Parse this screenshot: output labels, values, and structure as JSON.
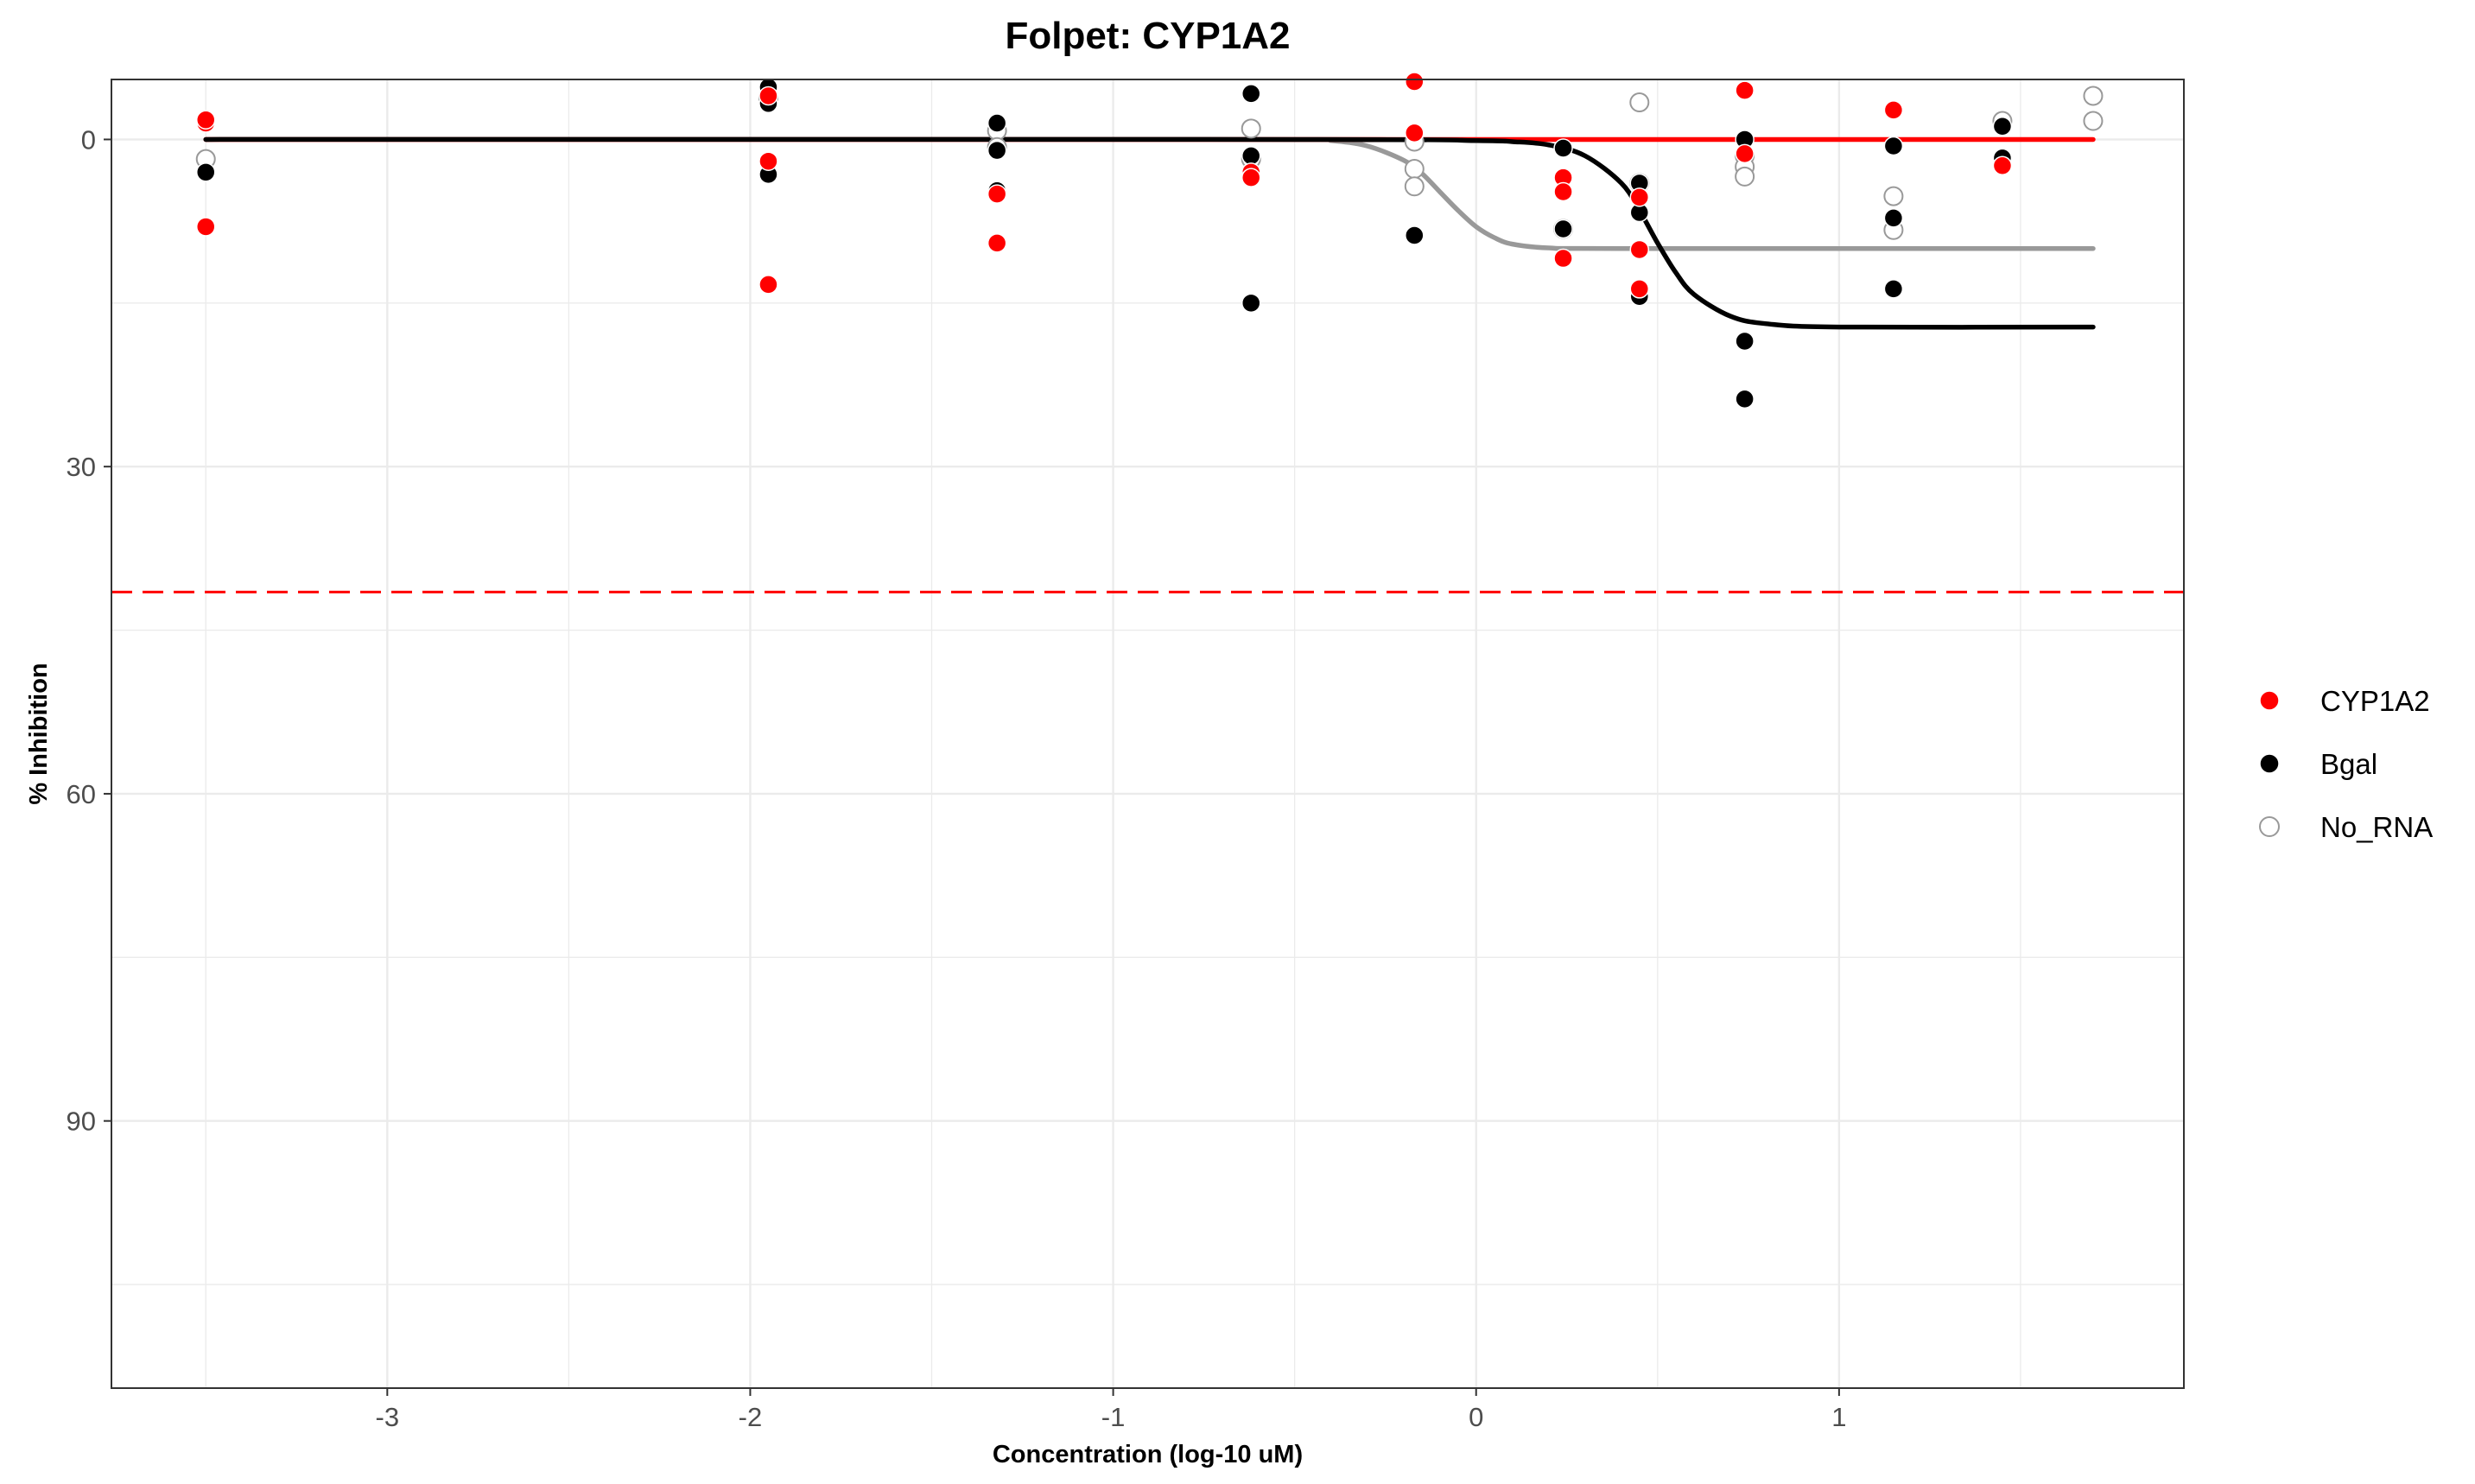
{
  "chart_data": {
    "type": "scatter",
    "title": "Folpet: CYP1A2",
    "xlabel": "Concentration (log-10 uM)",
    "ylabel": "% Inhibition",
    "xlim": [
      -3.76,
      1.95
    ],
    "ylim": [
      114.5,
      -5.5
    ],
    "y_reversed": true,
    "x_ticks": [
      -3,
      -2,
      -1,
      0,
      1
    ],
    "x_tick_labels": [
      "-3",
      "-2",
      "-1",
      "0",
      "1"
    ],
    "y_ticks": [
      0,
      30,
      60,
      90
    ],
    "y_tick_labels": [
      "0",
      "30",
      "60",
      "90"
    ],
    "grid": true,
    "threshold_line": {
      "y": 41.5,
      "color": "#ff0000",
      "style": "dashed"
    },
    "legend": {
      "position": "right",
      "entries": [
        {
          "label": "CYP1A2",
          "color": "#ff0000",
          "filled": true
        },
        {
          "label": "Bgal",
          "color": "#000000",
          "filled": true
        },
        {
          "label": "No_RNA",
          "color": "#999999",
          "filled": false
        }
      ]
    },
    "series": [
      {
        "name": "CYP1A2",
        "color": "#ff0000",
        "filled": true,
        "points": [
          [
            -3.5,
            -1.5
          ],
          [
            -3.5,
            -1.8
          ],
          [
            -3.5,
            8.0
          ],
          [
            -1.95,
            2.0
          ],
          [
            -1.95,
            13.3
          ],
          [
            -1.95,
            -4.0
          ],
          [
            -1.32,
            5.0
          ],
          [
            -1.32,
            9.5
          ],
          [
            -0.62,
            3.0
          ],
          [
            -0.62,
            3.5
          ],
          [
            -0.17,
            -5.3
          ],
          [
            -0.17,
            -0.6
          ],
          [
            0.24,
            3.5
          ],
          [
            0.24,
            4.8
          ],
          [
            0.24,
            10.9
          ],
          [
            0.45,
            5.3
          ],
          [
            0.45,
            10.1
          ],
          [
            0.45,
            13.7
          ],
          [
            0.74,
            -4.5
          ],
          [
            0.74,
            1.3
          ],
          [
            1.15,
            -2.7
          ],
          [
            1.45,
            2.4
          ]
        ],
        "fit": [
          [
            -3.5,
            0
          ],
          [
            1.7,
            0
          ]
        ]
      },
      {
        "name": "Bgal",
        "color": "#000000",
        "filled": true,
        "points": [
          [
            -3.5,
            3.0
          ],
          [
            -1.95,
            -4.8
          ],
          [
            -1.95,
            -3.3
          ],
          [
            -1.95,
            3.2
          ],
          [
            -1.32,
            -1.5
          ],
          [
            -1.32,
            1.0
          ],
          [
            -1.32,
            4.7
          ],
          [
            -0.62,
            -4.2
          ],
          [
            -0.62,
            1.5
          ],
          [
            -0.62,
            15.0
          ],
          [
            -0.17,
            8.8
          ],
          [
            0.24,
            0.8
          ],
          [
            0.24,
            8.2
          ],
          [
            0.45,
            4.0
          ],
          [
            0.45,
            6.7
          ],
          [
            0.45,
            14.4
          ],
          [
            0.74,
            0.0
          ],
          [
            0.74,
            18.5
          ],
          [
            0.74,
            23.8
          ],
          [
            1.15,
            0.6
          ],
          [
            1.15,
            7.2
          ],
          [
            1.15,
            13.7
          ],
          [
            1.45,
            -1.2
          ],
          [
            1.45,
            1.7
          ]
        ],
        "fit": [
          [
            -3.5,
            0.0
          ],
          [
            -0.5,
            0.0
          ],
          [
            0.0,
            0.1
          ],
          [
            0.1,
            0.2
          ],
          [
            0.2,
            0.5
          ],
          [
            0.3,
            1.5
          ],
          [
            0.4,
            4.0
          ],
          [
            0.45,
            6.5
          ],
          [
            0.5,
            9.5
          ],
          [
            0.55,
            12.2
          ],
          [
            0.6,
            14.2
          ],
          [
            0.7,
            16.2
          ],
          [
            0.8,
            16.9
          ],
          [
            1.0,
            17.2
          ],
          [
            1.7,
            17.2
          ]
        ]
      },
      {
        "name": "No_RNA",
        "color": "#999999",
        "filled": false,
        "points": [
          [
            -3.5,
            1.8
          ],
          [
            -1.95,
            -3.8
          ],
          [
            -1.32,
            -0.8
          ],
          [
            -1.32,
            0.7
          ],
          [
            -0.62,
            -1.0
          ],
          [
            -0.62,
            1.8
          ],
          [
            -0.17,
            0.2
          ],
          [
            -0.17,
            2.7
          ],
          [
            -0.17,
            4.3
          ],
          [
            0.24,
            8.2
          ],
          [
            0.45,
            -3.4
          ],
          [
            0.45,
            4.0
          ],
          [
            0.74,
            1.5
          ],
          [
            0.74,
            2.5
          ],
          [
            0.74,
            3.4
          ],
          [
            1.15,
            5.2
          ],
          [
            1.15,
            8.3
          ],
          [
            1.45,
            -1.7
          ],
          [
            1.7,
            -4.0
          ],
          [
            1.7,
            -1.7
          ]
        ],
        "fit": [
          [
            -3.5,
            0.0
          ],
          [
            -0.5,
            0.0
          ],
          [
            -0.4,
            0.1
          ],
          [
            -0.3,
            0.6
          ],
          [
            -0.2,
            1.9
          ],
          [
            -0.15,
            3.1
          ],
          [
            -0.1,
            4.8
          ],
          [
            -0.05,
            6.5
          ],
          [
            0.0,
            8.0
          ],
          [
            0.05,
            9.0
          ],
          [
            0.1,
            9.6
          ],
          [
            0.2,
            9.95
          ],
          [
            0.4,
            10.0
          ],
          [
            1.7,
            10.0
          ]
        ]
      }
    ]
  }
}
